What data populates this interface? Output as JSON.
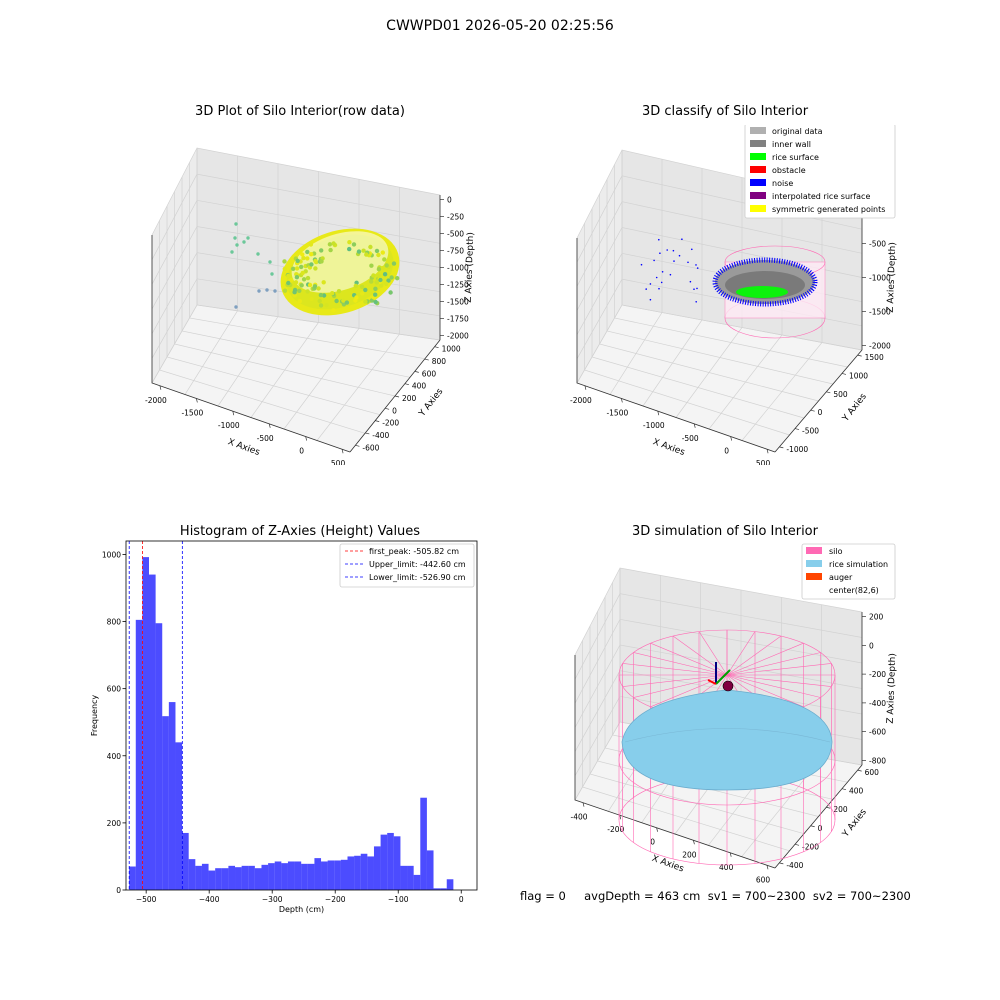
{
  "suptitle": "CWWPD01 2026-05-20 02:25:56",
  "footer": "flag = 0     avgDepth = 463 cm  sv1 = 700~2300  sv2 = 700~2300",
  "chart_data": [
    {
      "type": "scatter",
      "title": "3D Plot of Silo Interior(row data)",
      "xlabel": "X Axies",
      "ylabel": "Y Axies",
      "zlabel": "Z Axies (Depth)",
      "x_ticks": [
        "-2000",
        "-1500",
        "-1000",
        "-500",
        "0",
        "500"
      ],
      "y_ticks": [
        "-600",
        "-400",
        "-200",
        "0",
        "200",
        "400",
        "600",
        "800",
        "1000"
      ],
      "z_ticks": [
        "0",
        "-250",
        "-500",
        "-750",
        "-1000",
        "-1250",
        "-1500",
        "-1750",
        "-2000"
      ],
      "xlim": [
        -2200,
        600
      ],
      "ylim": [
        -650,
        1100
      ],
      "zlim": [
        -2000,
        0
      ]
    },
    {
      "type": "scatter",
      "title": "3D classify of Silo Interior",
      "xlabel": "X Axies",
      "ylabel": "Y Axies",
      "zlabel": "Z Axies (Depth)",
      "x_ticks": [
        "-2000",
        "-1500",
        "-1000",
        "-500",
        "0",
        "500"
      ],
      "y_ticks": [
        "-1000",
        "-500",
        "0",
        "500",
        "1000",
        "1500"
      ],
      "z_ticks": [
        "0",
        "-500",
        "-1000",
        "-1500",
        "-2000"
      ],
      "legend_position": "top-right",
      "legend": [
        {
          "label": "original data",
          "color": "#b0b0b0"
        },
        {
          "label": "inner wall",
          "color": "#808080"
        },
        {
          "label": "rice surface",
          "color": "#00ff00"
        },
        {
          "label": "obstacle",
          "color": "#ff0000"
        },
        {
          "label": "noise",
          "color": "#0000ff"
        },
        {
          "label": "interpolated rice surface",
          "color": "#800080"
        },
        {
          "label": "symmetric generated points",
          "color": "#ffff00"
        }
      ]
    },
    {
      "type": "bar",
      "title": "Histogram of Z-Axies (Height) Values",
      "xlabel": "Depth (cm)",
      "ylabel": "Frequency",
      "xlim": [
        -532,
        25
      ],
      "ylim": [
        0,
        1040
      ],
      "x_ticks": [
        -500,
        -400,
        -300,
        -200,
        -100,
        0
      ],
      "y_ticks": [
        0,
        200,
        400,
        600,
        800,
        1000
      ],
      "bar_color": "#0000ff",
      "bin_start": -527,
      "bin_width": 10.5,
      "values": [
        70,
        805,
        992,
        940,
        795,
        518,
        560,
        440,
        170,
        92,
        72,
        78,
        58,
        65,
        65,
        72,
        68,
        72,
        72,
        65,
        75,
        80,
        85,
        80,
        85,
        85,
        78,
        78,
        95,
        85,
        88,
        88,
        90,
        100,
        102,
        108,
        100,
        130,
        165,
        170,
        160,
        72,
        72,
        45,
        275,
        118,
        5,
        5,
        32
      ],
      "vlines": [
        {
          "label": "first_peak: -505.82 cm",
          "x": -505.82,
          "color": "#ff0000"
        },
        {
          "label": "Upper_limit: -442.60 cm",
          "x": -442.6,
          "color": "#0000ff"
        },
        {
          "label": "Lower_limit: -526.90 cm",
          "x": -526.9,
          "color": "#0000ff"
        }
      ],
      "legend_position": "top-right"
    },
    {
      "type": "scatter",
      "title": "3D simulation of Silo Interior",
      "xlabel": "X Axies",
      "ylabel": "Y Axies",
      "zlabel": "Z Axies (Depth)",
      "x_ticks": [
        "-400",
        "-200",
        "0",
        "200",
        "400",
        "600"
      ],
      "y_ticks": [
        "-400",
        "-200",
        "0",
        "200",
        "400",
        "600"
      ],
      "z_ticks": [
        "200",
        "0",
        "-200",
        "-400",
        "-600",
        "-800"
      ],
      "legend_position": "top-right",
      "legend": [
        {
          "label": "silo",
          "color": "#ff69b4"
        },
        {
          "label": "rice simulation",
          "color": "#87ceeb"
        },
        {
          "label": "auger",
          "color": "#ff4500"
        },
        {
          "label": "center(82,6)",
          "color": "#ffffff"
        }
      ]
    }
  ]
}
